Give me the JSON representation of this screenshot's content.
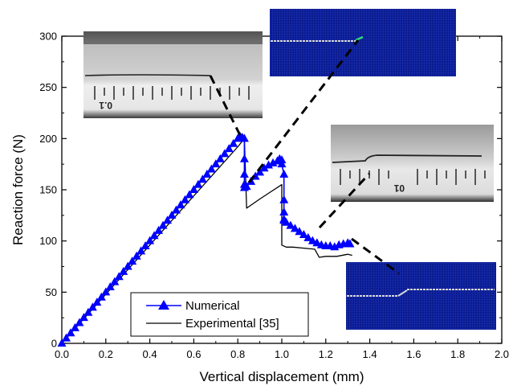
{
  "colors": {
    "numerical": "#0000ff",
    "experimental": "#000000",
    "mesh_blue": "#0a1a8c",
    "crack_white": "#d8d8d8",
    "crack_green": "#2fdc7a"
  },
  "chart_data": {
    "type": "line",
    "xlabel": "Vertical displacement (mm)",
    "ylabel": "Reaction force (N)",
    "xlim": [
      0.0,
      2.0
    ],
    "ylim": [
      0,
      300
    ],
    "xticks": [
      "0.0",
      "0.2",
      "0.4",
      "0.6",
      "0.8",
      "1.0",
      "1.2",
      "1.4",
      "1.6",
      "1.8",
      "2.0"
    ],
    "yticks": [
      "0",
      "50",
      "100",
      "150",
      "200",
      "250",
      "300"
    ],
    "grid": false,
    "legend_position": "bottom-left",
    "series": [
      {
        "name": "Numerical",
        "marker": "triangle",
        "x": [
          0.0,
          0.02,
          0.04,
          0.06,
          0.08,
          0.1,
          0.12,
          0.14,
          0.16,
          0.18,
          0.2,
          0.22,
          0.24,
          0.26,
          0.28,
          0.3,
          0.32,
          0.34,
          0.36,
          0.38,
          0.4,
          0.42,
          0.44,
          0.46,
          0.48,
          0.5,
          0.52,
          0.54,
          0.56,
          0.58,
          0.6,
          0.62,
          0.64,
          0.66,
          0.68,
          0.7,
          0.72,
          0.74,
          0.76,
          0.78,
          0.8,
          0.81,
          0.82,
          0.83,
          0.83,
          0.83,
          0.83,
          0.83,
          0.84,
          0.86,
          0.88,
          0.9,
          0.92,
          0.94,
          0.96,
          0.98,
          0.99,
          1.0,
          1.0,
          1.01,
          1.01,
          1.01,
          1.01,
          1.01,
          1.02,
          1.04,
          1.06,
          1.08,
          1.1,
          1.12,
          1.14,
          1.16,
          1.18,
          1.2,
          1.22,
          1.24,
          1.26,
          1.28,
          1.3,
          1.31
        ],
        "y": [
          0,
          5,
          10,
          15,
          20,
          25,
          30,
          35,
          40,
          45,
          50,
          55,
          60,
          65,
          70,
          75,
          80,
          85,
          90,
          95,
          100,
          105,
          110,
          115,
          120,
          125,
          130,
          135,
          140,
          145,
          150,
          155,
          160,
          165,
          170,
          175,
          180,
          185,
          190,
          195,
          200,
          202,
          201,
          200,
          180,
          165,
          155,
          152,
          153,
          158,
          163,
          167,
          171,
          174,
          176,
          178,
          180,
          179,
          175,
          165,
          140,
          128,
          121,
          120,
          118,
          115,
          112,
          109,
          106,
          103,
          100,
          98,
          96,
          95,
          95,
          94,
          96,
          97,
          98,
          97
        ]
      },
      {
        "name": "Experimental [35]",
        "marker": "none",
        "x": [
          0.0,
          0.1,
          0.2,
          0.3,
          0.4,
          0.5,
          0.6,
          0.7,
          0.8,
          0.83,
          0.84,
          0.86,
          0.9,
          0.95,
          1.0,
          1.0,
          1.02,
          1.05,
          1.1,
          1.15,
          1.17,
          1.2,
          1.25,
          1.3,
          1.32
        ],
        "y": [
          0,
          24,
          48,
          72,
          96,
          120,
          144,
          168,
          192,
          200,
          132,
          135,
          141,
          148,
          155,
          96,
          94,
          94,
          93,
          92,
          84,
          85,
          85,
          87,
          86
        ]
      }
    ],
    "insets": [
      {
        "kind": "photo",
        "label_text": "0.1"
      },
      {
        "kind": "mesh"
      },
      {
        "kind": "photo",
        "label_text": "01"
      },
      {
        "kind": "mesh"
      }
    ]
  }
}
